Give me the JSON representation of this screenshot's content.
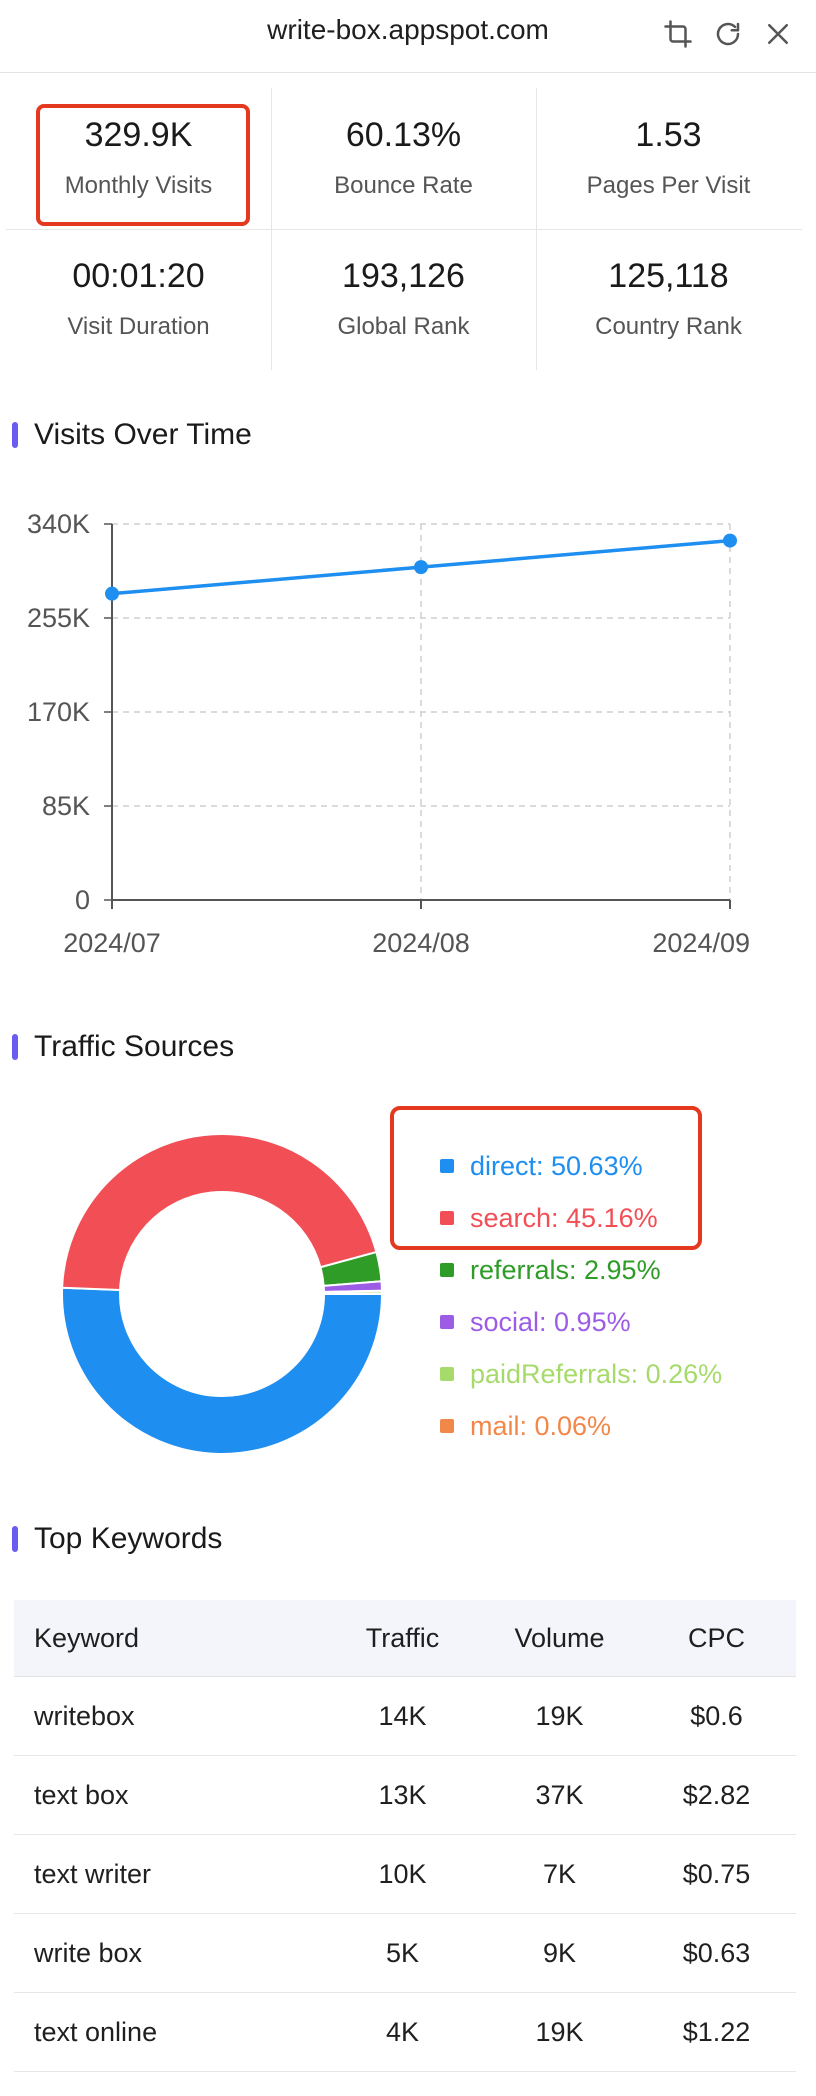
{
  "header": {
    "title": "write-box.appspot.com",
    "icons": [
      "crop-icon",
      "refresh-icon",
      "close-icon"
    ]
  },
  "stats": [
    {
      "value": "329.9K",
      "label": "Monthly Visits"
    },
    {
      "value": "60.13%",
      "label": "Bounce Rate"
    },
    {
      "value": "1.53",
      "label": "Pages Per Visit"
    },
    {
      "value": "00:01:20",
      "label": "Visit Duration"
    },
    {
      "value": "193,126",
      "label": "Global Rank"
    },
    {
      "value": "125,118",
      "label": "Country Rank"
    }
  ],
  "sections": {
    "visits_title": "Visits Over Time",
    "traffic_title": "Traffic Sources",
    "keywords_title": "Top Keywords"
  },
  "chart_data": [
    {
      "type": "line",
      "x": [
        "2024/07",
        "2024/08",
        "2024/09"
      ],
      "series": [
        {
          "values": [
            277000,
            301000,
            325000
          ]
        }
      ],
      "yticks": [
        "0",
        "85K",
        "170K",
        "255K",
        "340K"
      ],
      "ylim": [
        0,
        340000
      ],
      "grid": true
    },
    {
      "type": "pie",
      "categories": [
        "direct",
        "search",
        "referrals",
        "social",
        "paidReferrals",
        "mail"
      ],
      "values": [
        50.63,
        45.16,
        2.95,
        0.95,
        0.26,
        0.06
      ],
      "labels": [
        "direct: 50.63%",
        "search: 45.16%",
        "referrals: 2.95%",
        "social: 0.95%",
        "paidReferrals: 0.26%",
        "mail: 0.06%"
      ],
      "colors": [
        "#1e8ef0",
        "#f24e55",
        "#2e9c27",
        "#9d5ce6",
        "#a6db6b",
        "#f2874a"
      ],
      "legend": "right"
    }
  ],
  "keywords": {
    "headers": [
      "Keyword",
      "Traffic",
      "Volume",
      "CPC"
    ],
    "rows": [
      [
        "writebox",
        "14K",
        "19K",
        "$0.6"
      ],
      [
        "text box",
        "13K",
        "37K",
        "$2.82"
      ],
      [
        "text writer",
        "10K",
        "7K",
        "$0.75"
      ],
      [
        "write box",
        "5K",
        "9K",
        "$0.63"
      ],
      [
        "text online",
        "4K",
        "19K",
        "$1.22"
      ]
    ]
  },
  "colors": {
    "accent_bar": "#6a5cf0",
    "highlight": "#e5391f",
    "line": "#1e8ef0"
  }
}
